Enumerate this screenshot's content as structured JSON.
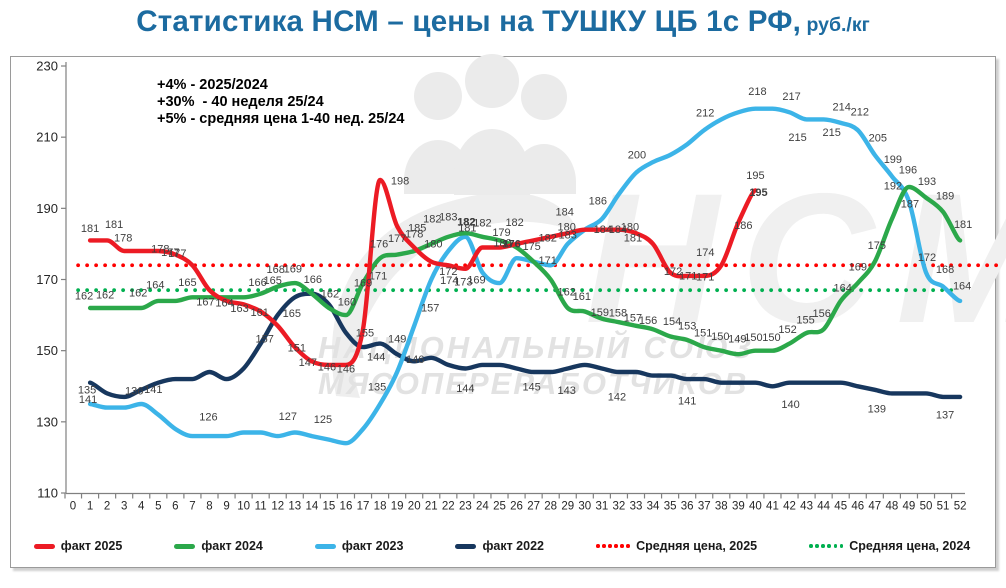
{
  "title": {
    "main": "Статистика НСМ – цены на ТУШКУ ЦБ 1с РФ,",
    "unit": " руб./кг"
  },
  "annotations": {
    "lines": [
      "+4% - 2025/2024",
      "+30%  - 40 неделя 25/24",
      "+5% - средняя цена 1-40 нед. 25/24"
    ]
  },
  "watermark": {
    "acronym": "НСМ",
    "org_line1": "НАЦИОНАЛЬНЫЙ СОЮЗ",
    "org_line2": "МЯСОПЕРЕРАБОТЧИКОВ"
  },
  "chart_data": {
    "type": "line",
    "title": "Статистика НСМ – цены на ТУШКУ ЦБ 1с РФ, руб./кг",
    "x_axis": {
      "min": 0,
      "max": 52,
      "step": 1
    },
    "y_axis": {
      "min": 110,
      "max": 230,
      "step": 20
    },
    "avg_lines": [
      {
        "name": "Средняя цена, 2025",
        "value": 174,
        "color": "#FF0000",
        "w0": 0.3,
        "w1": 54.2
      },
      {
        "name": "Средняя цена, 2024",
        "value": 167,
        "color": "#00B050",
        "w0": 0.3,
        "w1": 51.8
      }
    ],
    "series": [
      {
        "name": "факт 2022",
        "color": "#17375E",
        "start_week": 1,
        "values": [
          141,
          138,
          137,
          139,
          141,
          142,
          142,
          144,
          142,
          145,
          152,
          160,
          165,
          166,
          163,
          155,
          151,
          152,
          149,
          147,
          148,
          146,
          145,
          146,
          146,
          145,
          144,
          144,
          145,
          146,
          145,
          144,
          144,
          143,
          143,
          142,
          142,
          141,
          141,
          141,
          140,
          141,
          141,
          141,
          141,
          140,
          139,
          138,
          138,
          138,
          137,
          137
        ],
        "labels": [
          [
            1,
            "141",
            "b",
            -2,
            1
          ],
          [
            4,
            "136",
            "o",
            -7,
            0
          ],
          [
            5,
            "141",
            "o",
            -5,
            6
          ],
          [
            13,
            "165",
            "b",
            -3,
            0
          ],
          [
            16,
            "155",
            "o",
            19,
            -1
          ],
          [
            19,
            "149",
            "a",
            0,
            -2
          ],
          [
            20,
            "146",
            "o",
            1,
            -3
          ],
          [
            23,
            "144",
            "b",
            0,
            4
          ],
          [
            27,
            "145",
            "b",
            -2,
            -1
          ],
          [
            29,
            "143",
            "b",
            -1,
            6
          ],
          [
            32,
            "142",
            "b",
            -2,
            9
          ],
          [
            36,
            "141",
            "b",
            0,
            6
          ],
          [
            42,
            "140",
            "b",
            1,
            6
          ],
          [
            47,
            "139",
            "b",
            2,
            3
          ],
          [
            51,
            "137",
            "b",
            2,
            2
          ]
        ]
      },
      {
        "name": "факт 2023",
        "color": "#3CB4E8",
        "start_week": 1,
        "values": [
          135,
          134,
          134,
          135,
          132,
          128,
          126,
          126,
          126,
          127,
          127,
          126,
          127,
          126,
          125,
          124,
          128,
          135,
          144,
          157,
          170,
          178,
          182,
          172,
          169,
          176,
          175,
          174,
          180,
          184,
          187,
          194,
          200,
          203,
          205,
          208,
          212,
          215,
          217,
          218,
          218,
          217,
          215,
          215,
          214,
          212,
          205,
          199,
          192,
          172,
          168,
          164
        ],
        "labels": [
          [
            1,
            "135",
            "a",
            -3,
            -1
          ],
          [
            8,
            "126",
            "a",
            -1,
            -6
          ],
          [
            13,
            "127",
            "a",
            -7,
            -3
          ],
          [
            15,
            "125",
            "a",
            -6,
            -7
          ],
          [
            18,
            "135",
            "a",
            -3,
            -4
          ],
          [
            19,
            "144",
            "a",
            -21,
            -2
          ],
          [
            20,
            "157",
            "a",
            16,
            -5
          ],
          [
            23,
            "182",
            "a",
            1,
            -2,
            1
          ],
          [
            25,
            "169",
            "o",
            -23,
            -4
          ],
          [
            26,
            "176",
            "a",
            -5,
            -1,
            1
          ],
          [
            27,
            "175",
            "a",
            -2,
            -2
          ],
          [
            28,
            "171",
            "o",
            -3,
            -6
          ],
          [
            29,
            "180",
            "a",
            -1,
            -4
          ],
          [
            31,
            "186",
            "a",
            -4,
            -5
          ],
          [
            33,
            "200",
            "a",
            1,
            -5
          ],
          [
            37,
            "212",
            "a",
            1,
            -4
          ],
          [
            40,
            "218",
            "a",
            2,
            -4
          ],
          [
            42,
            "217",
            "a",
            2,
            -3
          ],
          [
            43,
            "215",
            "b",
            -9,
            2
          ],
          [
            44,
            "215",
            "b",
            8,
            -3
          ],
          [
            45,
            "214",
            "a",
            1,
            -3
          ],
          [
            46,
            "212",
            "a",
            2,
            -5
          ],
          [
            47,
            "205",
            "a",
            3,
            -4
          ],
          [
            48,
            "199",
            "a",
            1,
            -4
          ],
          [
            49,
            "192",
            "a",
            -16,
            -2
          ],
          [
            50,
            "172",
            "a",
            1,
            -2
          ],
          [
            51,
            "168",
            "a",
            2,
            -4
          ],
          [
            52,
            "164",
            "a",
            2,
            -2
          ]
        ]
      },
      {
        "name": "факт 2024",
        "color": "#2BA84A",
        "start_week": 1,
        "values": [
          162,
          162,
          162,
          162,
          164,
          164,
          165,
          165,
          165,
          165,
          166,
          168,
          169,
          166,
          162,
          160,
          169,
          176,
          177,
          178,
          180,
          182,
          183,
          182,
          181,
          179,
          175,
          170,
          162,
          161,
          159,
          158,
          157,
          156,
          154,
          153,
          151,
          150,
          149,
          150,
          150,
          152,
          155,
          156,
          164,
          169,
          175,
          187,
          196,
          193,
          189,
          181
        ],
        "labels": [
          [
            1,
            "162",
            "a",
            -6,
            1
          ],
          [
            2,
            "162",
            "a",
            -2,
            0
          ],
          [
            4,
            "162",
            "a",
            -3,
            -2
          ],
          [
            5,
            "164",
            "a",
            -3,
            -3
          ],
          [
            7,
            "165",
            "a",
            -5,
            -2
          ],
          [
            10,
            "166",
            "a",
            14,
            -2
          ],
          [
            11,
            "165",
            "a",
            12,
            0
          ],
          [
            12,
            "168",
            "a",
            -2,
            -4
          ],
          [
            13,
            "169",
            "a",
            -2,
            -1
          ],
          [
            14,
            "166",
            "a",
            1,
            -1
          ],
          [
            15,
            "162",
            "a",
            1,
            -1
          ],
          [
            16,
            "160",
            "a",
            1,
            0
          ],
          [
            17,
            "169",
            "o",
            0,
            -1
          ],
          [
            18,
            "171",
            "b",
            -2,
            2
          ],
          [
            18,
            "176",
            "a",
            -1,
            -1
          ],
          [
            19,
            "177",
            "a",
            0,
            -3
          ],
          [
            20,
            "178",
            "a",
            0,
            -4
          ],
          [
            21,
            "180",
            "o",
            2,
            -1
          ],
          [
            21,
            "182",
            "a",
            1,
            -12
          ],
          [
            22,
            "183",
            "a",
            0,
            -7
          ],
          [
            23,
            "182",
            "a",
            1,
            2,
            1
          ],
          [
            23,
            "181",
            "o",
            2,
            -6
          ],
          [
            24,
            "182",
            "a",
            0,
            -1
          ],
          [
            29,
            "162",
            "a",
            -1,
            -3
          ],
          [
            30,
            "161",
            "a",
            -3,
            -2
          ],
          [
            31,
            "159",
            "a",
            -2,
            7
          ],
          [
            32,
            "158",
            "a",
            -1,
            4
          ],
          [
            33,
            "157",
            "a",
            -3,
            5
          ],
          [
            34,
            "156",
            "a",
            -5,
            4
          ],
          [
            35,
            "154",
            "a",
            2,
            -2
          ],
          [
            36,
            "153",
            "a",
            0,
            -1
          ],
          [
            37,
            "151",
            "a",
            -1,
            -1
          ],
          [
            38,
            "150",
            "a",
            -1,
            -1
          ],
          [
            39,
            "149",
            "a",
            -1,
            -2
          ],
          [
            40,
            "150",
            "a",
            -2,
            0
          ],
          [
            41,
            "150",
            "a",
            -1,
            0
          ],
          [
            42,
            "152",
            "a",
            -2,
            -1
          ],
          [
            43,
            "155",
            "a",
            -1,
            0
          ],
          [
            44,
            "156",
            "a",
            -2,
            -3
          ],
          [
            45,
            "164",
            "a",
            2,
            0
          ],
          [
            46,
            "169",
            "a",
            0,
            -3
          ],
          [
            47,
            "175",
            "a",
            2,
            -3
          ],
          [
            49,
            "187",
            "b",
            1,
            1
          ],
          [
            49,
            "196",
            "a",
            -1,
            -4
          ],
          [
            50,
            "193",
            "a",
            1,
            -3
          ],
          [
            51,
            "189",
            "a",
            2,
            -3
          ],
          [
            52,
            "181",
            "a",
            3,
            -3
          ]
        ]
      },
      {
        "name": "факт 2025",
        "color": "#EC1B24",
        "start_week": 1,
        "values": [
          181,
          181,
          178,
          178,
          178,
          177,
          174,
          167,
          164,
          163,
          161,
          157,
          151,
          147,
          146,
          146,
          156,
          198,
          185,
          179,
          175,
          174,
          173,
          179,
          179,
          180,
          181,
          182,
          183,
          184,
          184,
          184,
          183,
          180,
          172,
          171,
          171,
          174,
          186,
          195
        ],
        "labels": [
          [
            1,
            "181",
            "a",
            0,
            1
          ],
          [
            2,
            "181",
            "a",
            7,
            -3
          ],
          [
            3,
            "178",
            "a",
            -1,
            0
          ],
          [
            5,
            "178",
            "o",
            2,
            -3
          ],
          [
            6,
            "177",
            "o",
            -5,
            -3
          ],
          [
            6,
            "177",
            "o",
            2,
            -2
          ],
          [
            8,
            "167",
            "o",
            -4,
            11
          ],
          [
            9,
            "164",
            "o",
            -2,
            1
          ],
          [
            10,
            "163",
            "o",
            -4,
            3
          ],
          [
            11,
            "161",
            "o",
            -1,
            0
          ],
          [
            12,
            "157",
            "b",
            -13,
            -3
          ],
          [
            13,
            "151",
            "o",
            2,
            0
          ],
          [
            14,
            "147",
            "o",
            -4,
            0
          ],
          [
            15,
            "146",
            "o",
            -2,
            1
          ],
          [
            16,
            "146",
            "o",
            0,
            3
          ],
          [
            18,
            "198",
            "o",
            20,
            0
          ],
          [
            19,
            "185",
            "o",
            20,
            1
          ],
          [
            21,
            "172",
            "o",
            17,
            9
          ],
          [
            22,
            "174",
            "b",
            1,
            -1
          ],
          [
            23,
            "173",
            "b",
            -2,
            -3
          ],
          [
            25,
            "179",
            "a",
            2,
            -2
          ],
          [
            26,
            "180",
            "o",
            -14,
            -2
          ],
          [
            27,
            "182",
            "a",
            -19,
            -5
          ],
          [
            28,
            "182",
            "o",
            -3,
            0
          ],
          [
            29,
            "184",
            "a",
            -3,
            -8
          ],
          [
            29,
            "183",
            "o",
            0,
            1
          ],
          [
            31,
            "184",
            "o",
            1,
            -1
          ],
          [
            32,
            "184",
            "o",
            -1,
            -1
          ],
          [
            33,
            "180",
            "a",
            -6,
            7
          ],
          [
            33,
            "181",
            "o",
            -3,
            4
          ],
          [
            35,
            "172",
            "o",
            3,
            -2
          ],
          [
            36,
            "171",
            "o",
            1,
            -1
          ],
          [
            37,
            "171",
            "o",
            1,
            0
          ],
          [
            38,
            "174",
            "a",
            -16,
            0
          ],
          [
            39,
            "186",
            "o",
            5,
            2
          ],
          [
            40,
            "195",
            "a",
            0,
            -2
          ],
          [
            40,
            "195",
            "o",
            3,
            1,
            1
          ]
        ]
      }
    ]
  },
  "legend": {
    "items": [
      {
        "label": "факт 2025",
        "type": "line",
        "color": "#EC1B24"
      },
      {
        "label": "факт 2024",
        "type": "line",
        "color": "#2BA84A"
      },
      {
        "label": "факт 2023",
        "type": "line",
        "color": "#3CB4E8"
      },
      {
        "label": "факт 2022",
        "type": "line",
        "color": "#17375E"
      },
      {
        "label": "Средняя цена, 2025",
        "type": "dots",
        "color": "#FF0000"
      },
      {
        "label": "Средняя цена, 2024",
        "type": "dots",
        "color": "#00B050"
      }
    ]
  }
}
